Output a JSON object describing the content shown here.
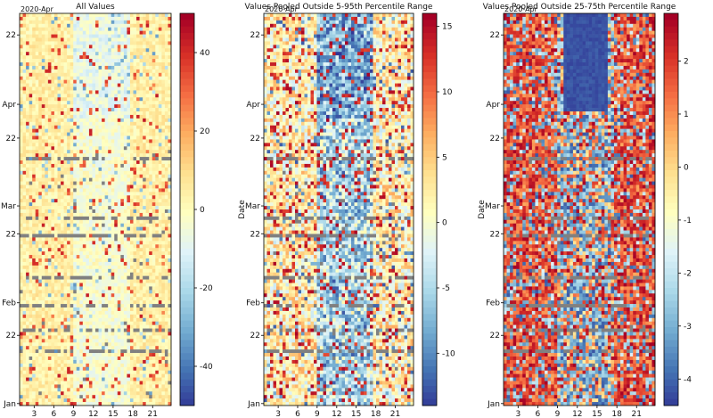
{
  "chart_data": [
    {
      "type": "heatmap",
      "title": "All Values",
      "corner_label": "2020-Apr",
      "ylabel": "",
      "x_ticks": [
        "3",
        "6",
        "9",
        "12",
        "15",
        "18",
        "21"
      ],
      "y_ticks": [
        "22",
        "Apr",
        "22",
        "Mar",
        "22",
        "Feb",
        "22",
        "Jan"
      ],
      "colorbar_ticks": [
        40,
        20,
        0,
        -20,
        -40
      ],
      "colorbar_range": [
        -50,
        50
      ],
      "colormap": "RdYlBu_r",
      "missing_color": "#808080"
    },
    {
      "type": "heatmap",
      "title": "Values Pooled Outside 5-95th Percentile Range",
      "corner_label": "2020-Apr",
      "ylabel": "Date",
      "x_ticks": [
        "3",
        "6",
        "9",
        "12",
        "15",
        "18",
        "21"
      ],
      "y_ticks": [
        "22",
        "Apr",
        "22",
        "Mar",
        "22",
        "Feb",
        "22",
        "Jan"
      ],
      "colorbar_ticks": [
        15,
        10,
        5,
        0,
        -5,
        -10
      ],
      "colorbar_range": [
        -14,
        16
      ],
      "colormap": "RdYlBu_r",
      "missing_color": "#808080"
    },
    {
      "type": "heatmap",
      "title": "Values Pooled Outside 25-75th Percentile Range",
      "corner_label": "2020-Apr",
      "ylabel": "Date",
      "x_ticks": [
        "3",
        "6",
        "9",
        "12",
        "15",
        "18",
        "21"
      ],
      "y_ticks": [
        "22",
        "Apr",
        "22",
        "Mar",
        "22",
        "Feb",
        "22",
        "Jan"
      ],
      "colorbar_ticks": [
        2,
        1,
        0,
        -1,
        -2,
        -3,
        -4
      ],
      "colorbar_range": [
        -4.5,
        2.9
      ],
      "colormap": "RdYlBu_r",
      "missing_color": "#808080"
    }
  ]
}
